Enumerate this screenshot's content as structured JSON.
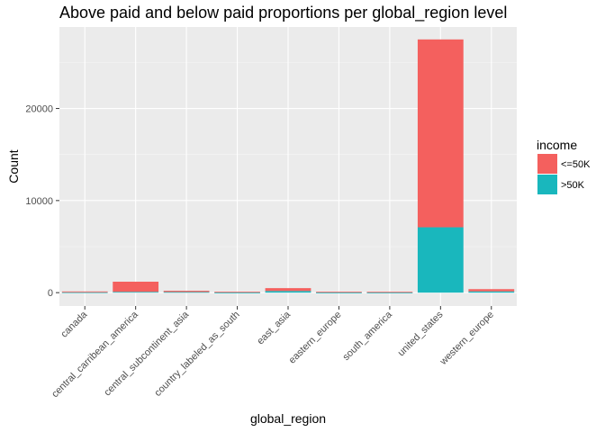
{
  "chart_data": {
    "type": "bar",
    "stacked": true,
    "title": "Above paid and below paid proportions per global_region level",
    "xlabel": "global_region",
    "ylabel": "Count",
    "categories": [
      "canada",
      "central_carribean_america",
      "central_subcontinent_asia",
      "country_labeled_as_south",
      "east_asia",
      "eastern_europe",
      "south_america",
      "united_states",
      "western_europe"
    ],
    "series": [
      {
        "name": ">50K",
        "color": "#19b7bd",
        "values": [
          40,
          90,
          70,
          15,
          180,
          15,
          10,
          7100,
          140
        ]
      },
      {
        "name": "<=50K",
        "color": "#f4605e",
        "values": [
          90,
          1100,
          130,
          80,
          310,
          80,
          80,
          20400,
          240
        ]
      }
    ],
    "ylim": [
      -1450,
      28850
    ],
    "yticks": [
      0,
      10000,
      20000
    ],
    "ytick_labels": [
      "0",
      "10000",
      "20000"
    ],
    "legend": {
      "title": "income",
      "position": "right",
      "entries": [
        "<=50K",
        ">50K"
      ]
    },
    "grid": true,
    "panel_color": "#ebebeb"
  }
}
